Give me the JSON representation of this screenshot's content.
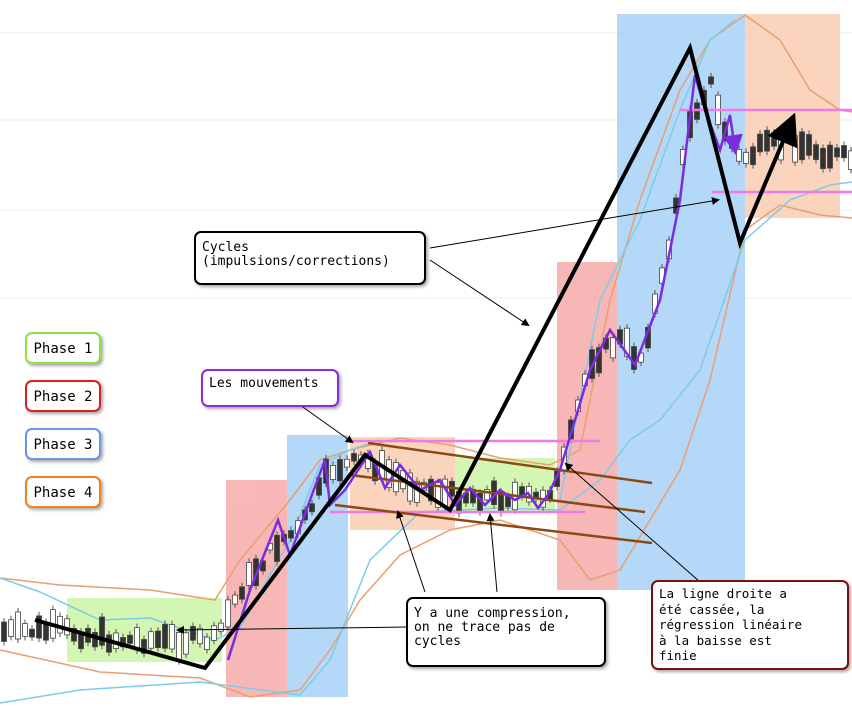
{
  "legend": [
    {
      "label": "Phase 1"
    },
    {
      "label": "Phase 2"
    },
    {
      "label": "Phase 3"
    },
    {
      "label": "Phase 4"
    }
  ],
  "callouts": [
    {
      "lines": [
        "Cycles",
        "(impulsions/corrections)"
      ]
    },
    {
      "lines": [
        "Les mouvements"
      ]
    },
    {
      "lines": [
        "Y a une compression,",
        "on ne trace pas de",
        "cycles"
      ]
    },
    {
      "lines": [
        "La ligne droite a",
        "été cassée, la",
        "régression linéaire",
        "à la baisse est",
        "finie"
      ]
    }
  ]
}
